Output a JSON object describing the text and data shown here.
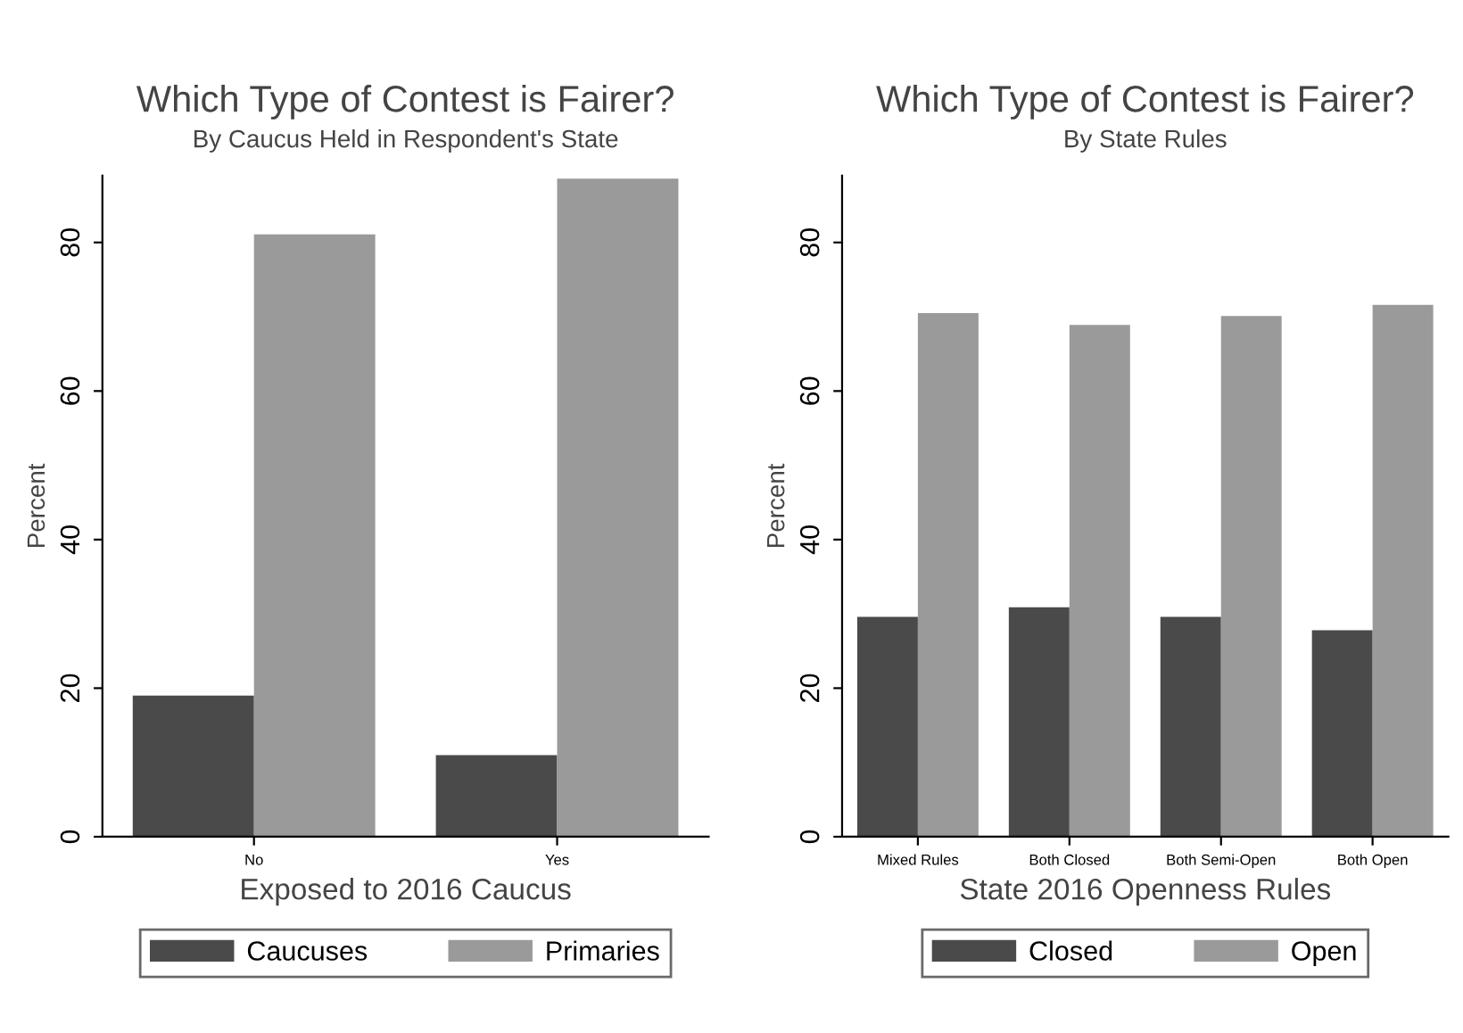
{
  "chart_data": [
    {
      "type": "bar",
      "title": "Which Type of Contest is Fairer?",
      "subtitle": "By Caucus Held in Respondent's State",
      "xlabel": "Exposed to 2016 Caucus",
      "ylabel": "Percent",
      "categories": [
        "No",
        "Yes"
      ],
      "series": [
        {
          "name": "Caucuses",
          "color": "#4a4a4a",
          "values": [
            19.0,
            11.0
          ]
        },
        {
          "name": "Primaries",
          "color": "#9a9a9a",
          "values": [
            81.1,
            88.6
          ]
        }
      ],
      "ylim": [
        0,
        89
      ],
      "yticks": [
        0,
        20,
        40,
        60,
        80
      ],
      "grid": false,
      "legend": "bottom"
    },
    {
      "type": "bar",
      "title": "Which Type of Contest is Fairer?",
      "subtitle": "By State Rules",
      "xlabel": "State 2016 Openness Rules",
      "ylabel": "Percent",
      "categories": [
        "Mixed Rules",
        "Both Closed",
        "Both Semi-Open",
        "Both Open"
      ],
      "series": [
        {
          "name": "Closed",
          "color": "#4a4a4a",
          "values": [
            29.6,
            30.9,
            29.6,
            27.8
          ]
        },
        {
          "name": "Open",
          "color": "#9a9a9a",
          "values": [
            70.5,
            68.9,
            70.1,
            71.6
          ]
        }
      ],
      "ylim": [
        0,
        89
      ],
      "yticks": [
        0,
        20,
        40,
        60,
        80
      ],
      "grid": false,
      "legend": "bottom"
    }
  ]
}
